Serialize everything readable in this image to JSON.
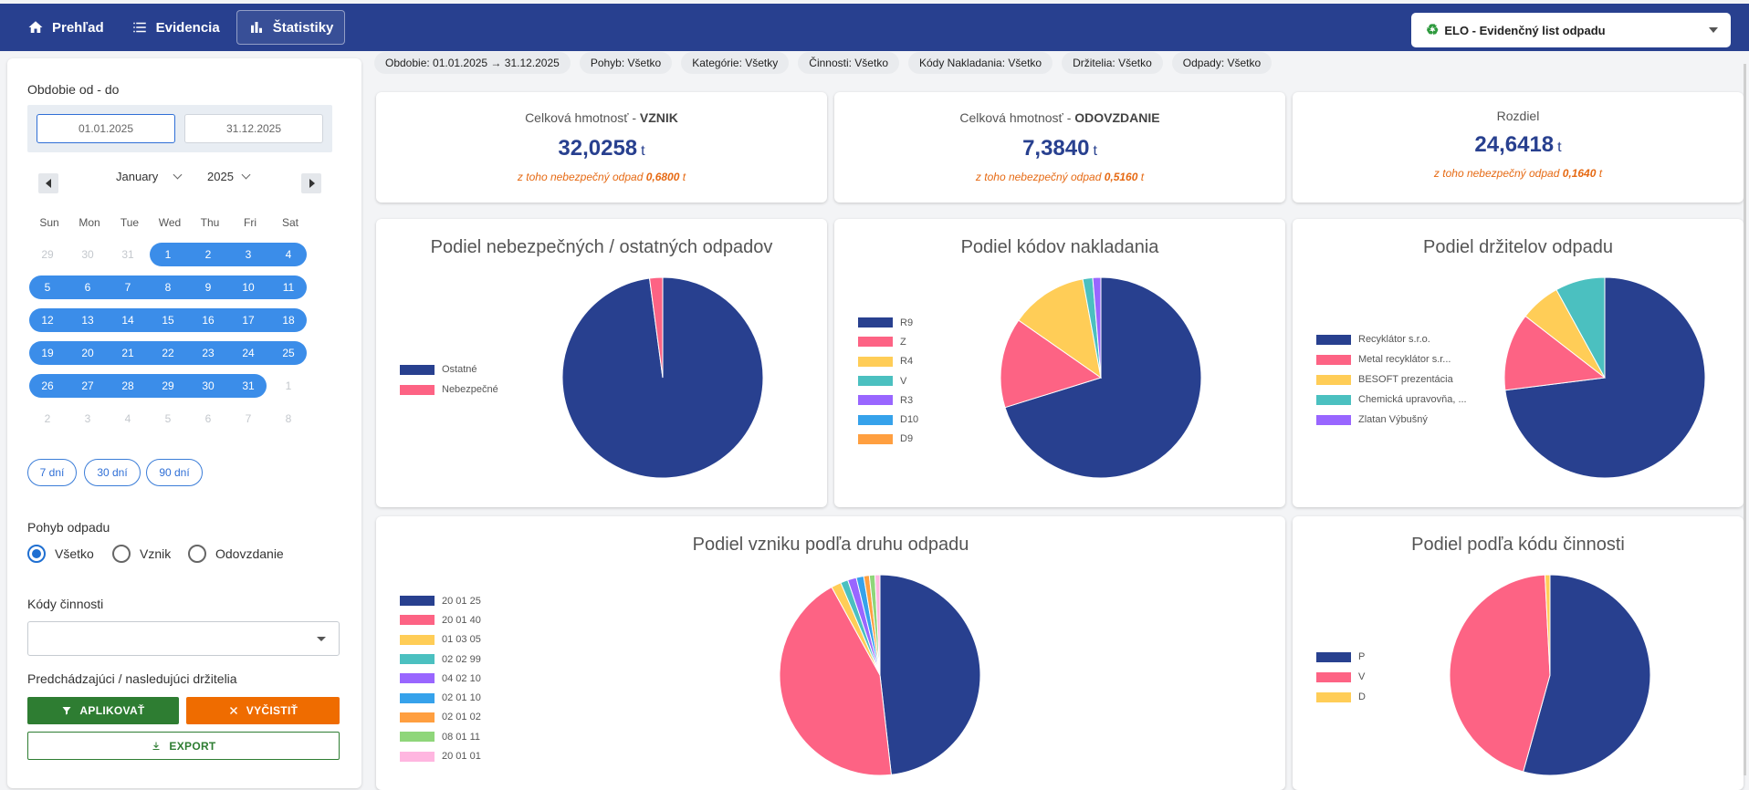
{
  "nav": {
    "items": [
      {
        "label": "Prehľad",
        "icon": "home-icon"
      },
      {
        "label": "Evidencia",
        "icon": "list-icon"
      },
      {
        "label": "Štatistiky",
        "icon": "bar-chart-icon",
        "active": true
      }
    ],
    "app_selector": {
      "icon": "recycle-icon",
      "label": "ELO - Evidenčný list odpadu"
    }
  },
  "sidebar": {
    "period_label": "Obdobie od - do",
    "date_from": "01.01.2025",
    "date_to": "31.12.2025",
    "calendar": {
      "month": "January",
      "year": "2025",
      "weekdays": [
        "Sun",
        "Mon",
        "Tue",
        "Wed",
        "Thu",
        "Fri",
        "Sat"
      ],
      "weeks": [
        [
          "29",
          "30",
          "31",
          "1",
          "2",
          "3",
          "4"
        ],
        [
          "5",
          "6",
          "7",
          "8",
          "9",
          "10",
          "11"
        ],
        [
          "12",
          "13",
          "14",
          "15",
          "16",
          "17",
          "18"
        ],
        [
          "19",
          "20",
          "21",
          "22",
          "23",
          "24",
          "25"
        ],
        [
          "26",
          "27",
          "28",
          "29",
          "30",
          "31",
          "1"
        ],
        [
          "2",
          "3",
          "4",
          "5",
          "6",
          "7",
          "8"
        ]
      ]
    },
    "quick_ranges": [
      "7 dní",
      "30 dní",
      "90 dní"
    ],
    "movement_label": "Pohyb odpadu",
    "movement_options": [
      "Všetko",
      "Vznik",
      "Odovzdanie"
    ],
    "movement_selected": "Všetko",
    "activity_codes_label": "Kódy činnosti",
    "holders_label": "Predchádzajúci / nasledujúci držitelia",
    "apply_label": "APLIKOVAŤ",
    "clear_label": "VYČISTIŤ",
    "export_label": "EXPORT"
  },
  "filter_chips": [
    "Obdobie: 01.01.2025 → 31.12.2025",
    "Pohyb: Všetko",
    "Kategórie: Všetky",
    "Činnosti: Všetko",
    "Kódy Nakladania: Všetko",
    "Držitelia: Všetko",
    "Odpady: Všetko"
  ],
  "kpis": [
    {
      "title_prefix": "Celková hmotnosť - ",
      "title_strong": "VZNIK",
      "value": "32,0258",
      "unit": "t",
      "note_prefix": "z toho nebezpečný odpad ",
      "note_value": "0,6800",
      "note_unit": " t"
    },
    {
      "title_prefix": "Celková hmotnosť - ",
      "title_strong": "ODOVZDANIE",
      "value": "7,3840",
      "unit": "t",
      "note_prefix": "z toho nebezpečný odpad ",
      "note_value": "0,5160",
      "note_unit": " t"
    },
    {
      "title_prefix": "Rozdiel",
      "title_strong": "",
      "value": "24,6418",
      "unit": "t",
      "note_prefix": "z toho nebezpečný odpad ",
      "note_value": "0,1640",
      "note_unit": " t"
    }
  ],
  "chart_data": [
    {
      "type": "pie",
      "title": "Podiel nebezpečných / ostatných odpadov",
      "labels": [
        "Ostatné",
        "Nebezpečné"
      ],
      "values": [
        97.9,
        2.1
      ],
      "colors": [
        "#28408f",
        "#fd6384"
      ]
    },
    {
      "type": "pie",
      "title": "Podiel kódov nakladania",
      "labels": [
        "R9",
        "Z",
        "R4",
        "V",
        "R3",
        "D10",
        "D9"
      ],
      "values": [
        70.2,
        14.5,
        12.4,
        1.6,
        1.3,
        0.0,
        0.0
      ],
      "colors": [
        "#28408f",
        "#fd6384",
        "#ffcd57",
        "#4bc0c0",
        "#9966ff",
        "#36a2eb",
        "#ff9f40"
      ]
    },
    {
      "type": "pie",
      "title": "Podiel držitelov odpadu",
      "labels": [
        "Recyklátor s.r.o.",
        "Metal recyklátor s.r...",
        "BESOFT prezentácia",
        "Chemická upravovňa, ...",
        "Zlatan Výbušný"
      ],
      "values": [
        73.0,
        12.5,
        6.5,
        8.0,
        0.0
      ],
      "colors": [
        "#28408f",
        "#fd6384",
        "#ffcd57",
        "#4bc0c0",
        "#9966ff"
      ]
    },
    {
      "type": "pie",
      "title": "Podiel vzniku podľa druhu odpadu",
      "labels": [
        "20 01 25",
        "20 01 40",
        "01 03 05",
        "02 02 99",
        "04 02 10",
        "02 01 10",
        "02 01 02",
        "08 01 11",
        "20 01 01"
      ],
      "values": [
        48.2,
        43.8,
        1.6,
        1.2,
        1.4,
        1.2,
        0.9,
        0.9,
        0.8
      ],
      "colors": [
        "#28408f",
        "#fd6384",
        "#ffcd57",
        "#4bc0c0",
        "#9966ff",
        "#36a2eb",
        "#ff9f40",
        "#8fd67a",
        "#ffb6e0"
      ]
    },
    {
      "type": "pie",
      "title": "Podiel podľa kódu činnosti",
      "labels": [
        "P",
        "V",
        "D"
      ],
      "values": [
        54.3,
        44.9,
        0.8
      ],
      "colors": [
        "#28408f",
        "#fd6384",
        "#ffcd57"
      ]
    }
  ]
}
